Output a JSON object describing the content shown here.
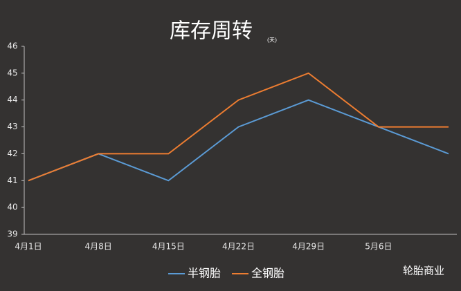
{
  "chart_data": {
    "type": "line",
    "title": "库存周转",
    "subtitle": "(天)",
    "categories": [
      "4月1日",
      "4月8日",
      "4月15日",
      "4月22日",
      "4月29日",
      "5月6日",
      null
    ],
    "series": [
      {
        "name": "半钢胎",
        "color": "#5b9bd5",
        "values": [
          41,
          42,
          41,
          43,
          44,
          43,
          42
        ]
      },
      {
        "name": "全钢胎",
        "color": "#ed7d31",
        "values": [
          41,
          42,
          42,
          44,
          45,
          43,
          43
        ]
      }
    ],
    "ylim": [
      39,
      46
    ],
    "yticks": [
      39,
      40,
      41,
      42,
      43,
      44,
      45,
      46
    ],
    "legend": "bottom",
    "watermark": "轮胎商业"
  }
}
